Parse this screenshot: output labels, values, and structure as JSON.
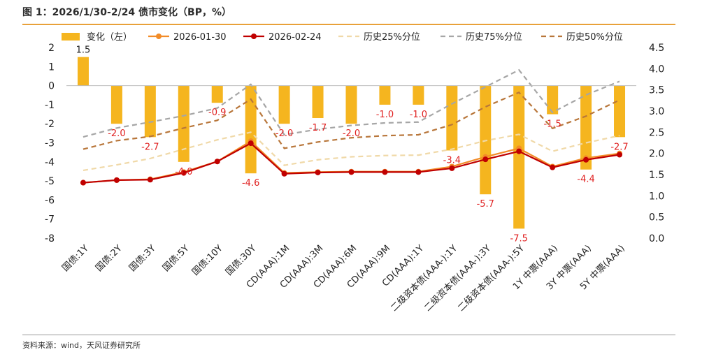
{
  "figure": {
    "title": "图 1：2026/1/30-2/24 债市变化（BP，%）",
    "source": "资料来源：wind，天风证券研究所"
  },
  "chart_data": {
    "type": "bar",
    "categories": [
      "国债:1Y",
      "国债:2Y",
      "国债:3Y",
      "国债:5Y",
      "国债:10Y",
      "国债:30Y",
      "CD(AAA):1M",
      "CD(AAA):3M",
      "CD(AAA):6M",
      "CD(AAA):9M",
      "CD(AAA):1Y",
      "二级资本债(AAA-):1Y",
      "二级资本债(AAA-):3Y",
      "二级资本债(AAA-):5Y",
      "1Y 中票(AAA)",
      "3Y 中票(AAA)",
      "5Y 中票(AAA)"
    ],
    "left_axis": {
      "ylim": [
        -8,
        2
      ],
      "ticks": [
        -8,
        -7,
        -6,
        -5,
        -4,
        -3,
        -2,
        -1,
        0,
        1,
        2
      ]
    },
    "right_axis": {
      "ylim": [
        0,
        4.5
      ],
      "ticks": [
        "0.0",
        "0.5",
        "1.0",
        "1.5",
        "2.0",
        "2.5",
        "3.0",
        "3.5",
        "4.0",
        "4.5"
      ]
    },
    "legend_position": "top",
    "series": [
      {
        "name": "变化（左）",
        "kind": "bar",
        "axis": "left",
        "color": "#f5b51f",
        "values": [
          1.5,
          -2.0,
          -2.7,
          -4.0,
          -0.9,
          -4.6,
          -2.0,
          -1.7,
          -2.0,
          -1.0,
          -1.0,
          -3.4,
          -5.7,
          -7.5,
          -1.5,
          -4.4,
          -2.7
        ],
        "labels": [
          "1.5",
          "-2.0",
          "-2.7",
          "-4.0",
          "-0.9",
          "-4.6",
          "-2.0",
          "-1.7",
          "-2.0",
          "-1.0",
          "-1.0",
          "-3.4",
          "-5.7",
          "-7.5",
          "-1.5",
          "-4.4",
          "-2.7"
        ]
      },
      {
        "name": "2026-01-30",
        "kind": "line-marker",
        "axis": "right",
        "color": "#f28c28",
        "values": [
          1.31,
          1.37,
          1.39,
          1.56,
          1.81,
          2.29,
          1.54,
          1.56,
          1.57,
          1.57,
          1.57,
          1.69,
          1.92,
          2.12,
          1.69,
          1.89,
          2.0
        ]
      },
      {
        "name": "2026-02-24",
        "kind": "line-marker",
        "axis": "right",
        "color": "#c00000",
        "values": [
          1.31,
          1.37,
          1.38,
          1.54,
          1.81,
          2.24,
          1.52,
          1.55,
          1.56,
          1.56,
          1.56,
          1.65,
          1.86,
          2.05,
          1.67,
          1.85,
          1.97
        ]
      },
      {
        "name": "历史25%分位",
        "kind": "dash",
        "axis": "right",
        "color": "#f0d9a8",
        "values": [
          1.6,
          1.73,
          1.88,
          2.1,
          2.32,
          2.5,
          1.72,
          1.85,
          1.92,
          1.95,
          1.96,
          2.1,
          2.3,
          2.45,
          2.05,
          2.25,
          2.42
        ]
      },
      {
        "name": "历史75%分位",
        "kind": "dash",
        "axis": "right",
        "color": "#a6a6a6",
        "values": [
          2.39,
          2.6,
          2.74,
          2.89,
          3.07,
          3.63,
          2.44,
          2.57,
          2.66,
          2.72,
          2.74,
          3.17,
          3.57,
          3.97,
          2.97,
          3.38,
          3.7
        ]
      },
      {
        "name": "历史50%分位",
        "kind": "dash",
        "axis": "right",
        "color": "#b8763a",
        "values": [
          2.1,
          2.3,
          2.4,
          2.6,
          2.78,
          3.28,
          2.12,
          2.27,
          2.37,
          2.42,
          2.44,
          2.68,
          3.1,
          3.44,
          2.59,
          2.88,
          3.26
        ]
      }
    ]
  }
}
